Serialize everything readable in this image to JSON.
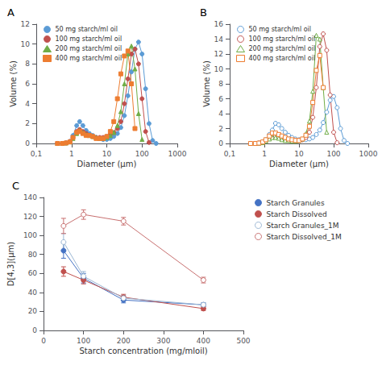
{
  "chart_data": [
    {
      "type": "line",
      "title": "A",
      "xlabel": "Diameter (μm)",
      "ylabel": "Volume (%)",
      "log": "x",
      "grid": false,
      "legend": "upper left",
      "xlim": [
        0.1,
        1000
      ],
      "xticks": [
        {
          "value": 0.1,
          "label": "0,1"
        },
        1,
        10,
        100,
        1000
      ],
      "ylim": [
        0,
        12
      ],
      "yticks": [
        0,
        2,
        4,
        6,
        8,
        10,
        12
      ],
      "series": [
        {
          "name": "50 mg starch/ml oil",
          "color": "#5B9BD5",
          "marker": "circle",
          "x": [
            0.4,
            0.55,
            0.7,
            0.9,
            1.1,
            1.4,
            1.7,
            2.1,
            2.6,
            3.2,
            4.0,
            5.0,
            6.3,
            7.9,
            10,
            12.6,
            15.8,
            20,
            25,
            31.6,
            39.8,
            50,
            63,
            79.4,
            100,
            126,
            158,
            200,
            251
          ],
          "values": [
            0,
            0,
            0.05,
            0.2,
            0.8,
            1.8,
            2.2,
            1.8,
            1.3,
            1.0,
            0.8,
            0.6,
            0.5,
            0.4,
            0.4,
            0.5,
            0.7,
            1.0,
            1.6,
            2.8,
            4.8,
            7.2,
            9.5,
            10.2,
            9.0,
            5.5,
            2.0,
            0.3,
            0
          ]
        },
        {
          "name": "100 mg starch/ml oil",
          "color": "#C0504D",
          "marker": "circle",
          "x": [
            0.4,
            0.55,
            0.7,
            0.9,
            1.1,
            1.4,
            1.7,
            2.1,
            2.6,
            3.2,
            4.0,
            5.0,
            6.3,
            7.9,
            10,
            12.6,
            15.8,
            20,
            25,
            31.6,
            39.8,
            50,
            63,
            79.4,
            100,
            126,
            158
          ],
          "values": [
            0,
            0,
            0.05,
            0.2,
            0.6,
            1.2,
            1.4,
            1.2,
            1.0,
            0.8,
            0.7,
            0.6,
            0.6,
            0.6,
            0.7,
            0.9,
            1.1,
            1.5,
            2.2,
            4.0,
            6.5,
            9.0,
            9.5,
            8.0,
            4.5,
            1.2,
            0.1
          ]
        },
        {
          "name": "200 mg starch/ml oil",
          "color": "#70AD47",
          "marker": "triangle",
          "x": [
            0.4,
            0.55,
            0.7,
            0.9,
            1.1,
            1.4,
            1.7,
            2.1,
            2.6,
            3.2,
            4.0,
            5.0,
            6.3,
            7.9,
            10,
            12.6,
            15.8,
            20,
            25,
            31.6,
            39.8,
            50,
            63,
            79.4,
            100
          ],
          "values": [
            0,
            0,
            0.05,
            0.15,
            0.5,
            1.0,
            1.3,
            1.1,
            0.9,
            0.8,
            0.7,
            0.6,
            0.5,
            0.5,
            0.6,
            0.8,
            1.1,
            1.8,
            3.2,
            6.0,
            9.0,
            9.8,
            7.5,
            3.0,
            0.4
          ]
        },
        {
          "name": "400 mg starch/ml oil",
          "color": "#ED7D31",
          "marker": "square",
          "x": [
            0.4,
            0.55,
            0.7,
            0.9,
            1.1,
            1.4,
            1.7,
            2.1,
            2.6,
            3.2,
            4.0,
            5.0,
            6.3,
            7.9,
            10,
            12.6,
            15.8,
            20,
            25,
            31.6,
            39.8,
            50,
            63
          ],
          "values": [
            0,
            0,
            0.05,
            0.15,
            0.6,
            1.1,
            1.2,
            1.0,
            0.8,
            0.8,
            0.7,
            0.5,
            0.5,
            0.5,
            0.7,
            1.2,
            2.2,
            4.5,
            7.0,
            8.8,
            9.3,
            6.0,
            1.5
          ]
        }
      ]
    },
    {
      "type": "line",
      "title": "B",
      "xlabel": "Diameter (μm)",
      "ylabel": "Volume (%)",
      "log": "x",
      "grid": false,
      "legend": "upper left",
      "xlim": [
        0.1,
        1000
      ],
      "xticks": [
        {
          "value": 0.1,
          "label": "0,1"
        },
        1,
        10,
        100,
        1000
      ],
      "ylim": [
        0,
        16
      ],
      "yticks": [
        0,
        2,
        4,
        6,
        8,
        10,
        12,
        14,
        16
      ],
      "series": [
        {
          "name": "50 mg starch/ml oil",
          "color": "#5B9BD5",
          "marker": "open_circle",
          "x": [
            0.4,
            0.55,
            0.7,
            0.9,
            1.1,
            1.4,
            1.7,
            2.1,
            2.6,
            3.2,
            4.0,
            5.0,
            6.3,
            7.9,
            10,
            12.6,
            15.8,
            20,
            25,
            31.6,
            39.8,
            50,
            63,
            79.4,
            100,
            126,
            158,
            200,
            251
          ],
          "values": [
            0,
            0,
            0.05,
            0.15,
            0.5,
            1.2,
            1.8,
            2.7,
            2.5,
            2.0,
            1.5,
            1.1,
            0.8,
            0.6,
            0.5,
            0.5,
            0.5,
            0.6,
            0.8,
            1.2,
            1.8,
            2.8,
            4.2,
            5.8,
            6.3,
            4.8,
            2.0,
            0.4,
            0
          ]
        },
        {
          "name": "100 mg starch/ml oil",
          "color": "#C0504D",
          "marker": "open_circle",
          "x": [
            0.4,
            0.55,
            0.7,
            0.9,
            1.1,
            1.4,
            1.7,
            2.1,
            2.6,
            3.2,
            4.0,
            5.0,
            6.3,
            7.9,
            10,
            12.6,
            15.8,
            20,
            25,
            31.6,
            39.8,
            50,
            63,
            79.4,
            100,
            126
          ],
          "values": [
            0,
            0,
            0.05,
            0.1,
            0.3,
            0.7,
            0.9,
            1.0,
            0.8,
            0.7,
            0.5,
            0.4,
            0.4,
            0.4,
            0.4,
            0.5,
            0.8,
            1.5,
            3.5,
            7.5,
            13.0,
            14.7,
            12.5,
            6.5,
            1.5,
            0.1
          ]
        },
        {
          "name": "200 mg starch/ml oil",
          "color": "#70AD47",
          "marker": "open_triangle",
          "x": [
            0.4,
            0.55,
            0.7,
            0.9,
            1.1,
            1.4,
            1.7,
            2.1,
            2.6,
            3.2,
            4.0,
            5.0,
            6.3,
            7.9,
            10,
            12.6,
            15.8,
            20,
            25,
            31.6,
            39.8,
            50,
            63
          ],
          "values": [
            0,
            0,
            0.05,
            0.1,
            0.3,
            0.6,
            0.8,
            0.8,
            0.7,
            0.5,
            0.4,
            0.4,
            0.3,
            0.3,
            0.4,
            0.6,
            1.3,
            3.0,
            7.0,
            14.5,
            14.0,
            7.5,
            1.5
          ]
        },
        {
          "name": "400 mg starch/ml oil",
          "color": "#ED7D31",
          "marker": "open_square",
          "x": [
            0.4,
            0.55,
            0.7,
            0.9,
            1.1,
            1.4,
            1.7,
            2.1,
            2.6,
            3.2,
            4.0,
            5.0,
            6.3,
            7.9,
            10,
            12.6,
            15.8,
            20,
            25,
            31.6,
            39.8,
            50
          ],
          "values": [
            0,
            0,
            0.05,
            0.2,
            0.5,
            1.0,
            1.4,
            1.4,
            1.2,
            1.0,
            0.8,
            0.6,
            0.5,
            0.4,
            0.4,
            0.6,
            1.1,
            2.3,
            5.5,
            9.8,
            11.8,
            7.5
          ]
        }
      ]
    },
    {
      "type": "line",
      "title": "C",
      "xlabel": "Starch concentration (mg/mloil)",
      "ylabel": "D[4,3](μm)",
      "grid": false,
      "legend": "right",
      "xlim": [
        0,
        500
      ],
      "xticks": [
        0,
        100,
        200,
        300,
        400,
        500
      ],
      "ylim": [
        0,
        140
      ],
      "yticks": [
        0,
        20,
        40,
        60,
        80,
        100,
        120,
        140
      ],
      "series": [
        {
          "name": "Starch Granules",
          "color": "#4472C4",
          "marker": "circle",
          "line_style": "solid",
          "x": [
            50,
            100,
            200,
            400
          ],
          "values": [
            84,
            55,
            32,
            27
          ],
          "yerr": [
            8,
            5,
            3,
            2
          ]
        },
        {
          "name": "Starch Dissolved",
          "color": "#C0504D",
          "marker": "circle",
          "line_style": "solid",
          "x": [
            50,
            100,
            200,
            400
          ],
          "values": [
            62,
            53,
            35,
            23
          ],
          "yerr": [
            5,
            4,
            3,
            2
          ]
        },
        {
          "name": "Starch Granules_1M",
          "color": "#9BB7D4",
          "marker": "open_circle",
          "line_style": "solid",
          "x": [
            50,
            100,
            200,
            400
          ],
          "values": [
            93,
            57,
            34,
            27
          ],
          "yerr": [
            9,
            5,
            3,
            2
          ]
        },
        {
          "name": "Starch Dissolved_1M",
          "color": "#C87070",
          "marker": "open_circle",
          "line_style": "solid",
          "x": [
            50,
            100,
            200,
            400
          ],
          "values": [
            110,
            122,
            115,
            53
          ],
          "yerr": [
            8,
            5,
            4,
            3
          ]
        }
      ]
    }
  ]
}
